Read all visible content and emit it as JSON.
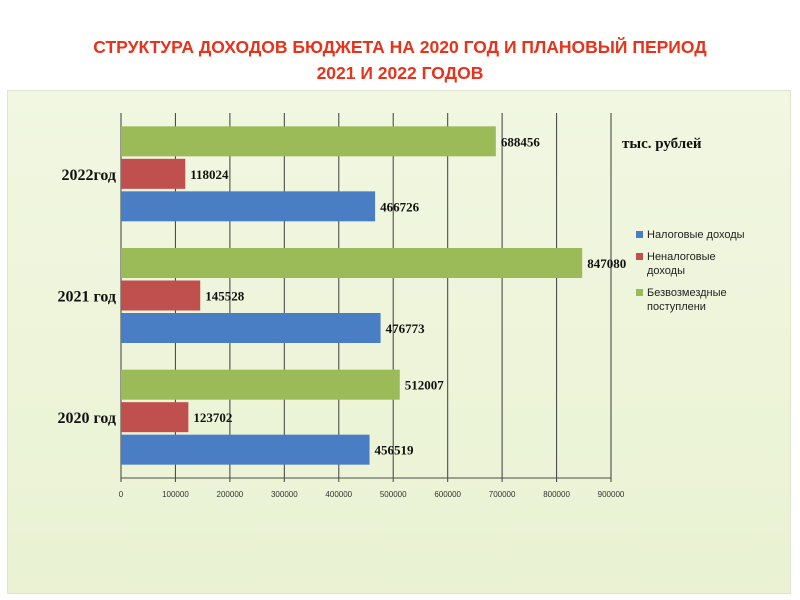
{
  "title": {
    "line1": "СТРУКТУРА ДОХОДОВ БЮДЖЕТА НА 2020 ГОД И ПЛАНОВЫЙ ПЕРИОД",
    "line2": "2021 И 2022 ГОДОВ"
  },
  "colors": {
    "title": "#e8331c",
    "panel_background": "#eef5dc",
    "tax": "#4a7ec4",
    "non_tax": "#c0504d",
    "grants": "#9bbb59"
  },
  "chart_data": {
    "type": "bar",
    "orientation": "horizontal",
    "categories": [
      "2020 год",
      "2021 год",
      "2022год"
    ],
    "series": [
      {
        "name": "Налоговые доходы",
        "color": "#4a7ec4",
        "values": [
          456519,
          476773,
          466726
        ]
      },
      {
        "name": "Неналоговые доходы",
        "color": "#c0504d",
        "values": [
          123702,
          145528,
          118024
        ]
      },
      {
        "name": "Безвозмездные поступлени",
        "color": "#9bbb59",
        "values": [
          512007,
          847080,
          688456
        ]
      }
    ],
    "unit_label": "тыс. рублей",
    "xlim": [
      0,
      900000
    ],
    "xticks": [
      0,
      100000,
      200000,
      300000,
      400000,
      500000,
      600000,
      700000,
      800000,
      900000
    ],
    "grid": true,
    "legend": {
      "position": "right",
      "entries": [
        "Налоговые доходы",
        "Неналоговые доходы",
        "Безвозмездные поступлени"
      ]
    },
    "data_labels": true
  }
}
